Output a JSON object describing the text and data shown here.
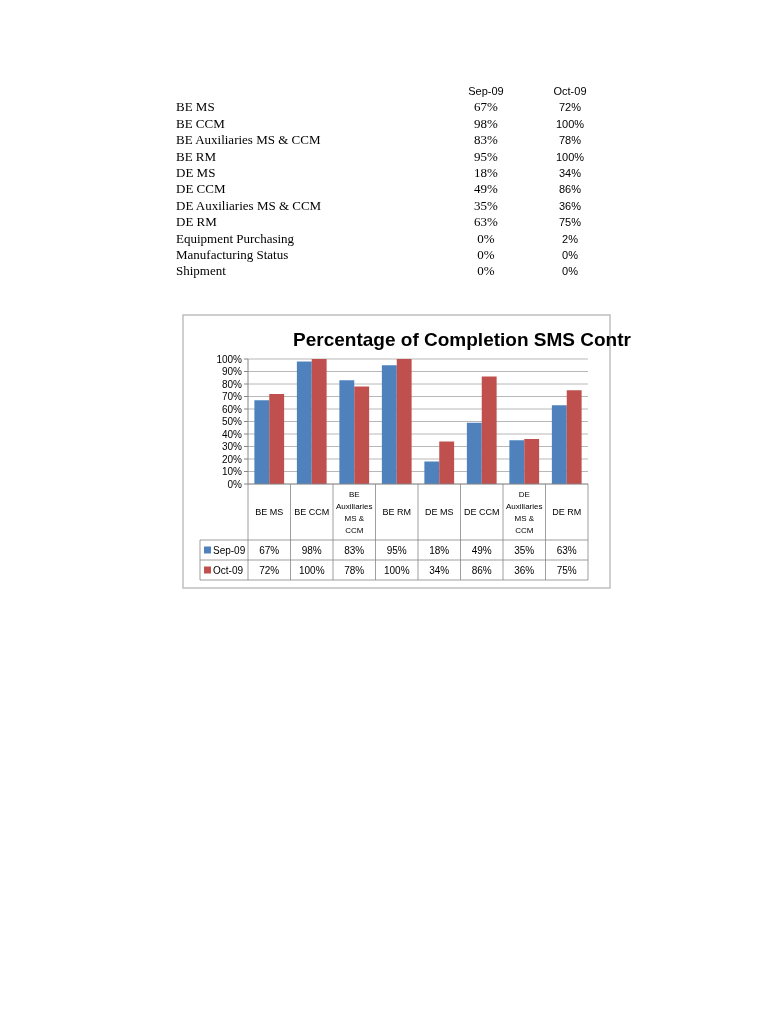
{
  "chart_data": [
    {
      "type": "other",
      "categories": [
        "BE MS",
        "BE CCM",
        "BE Auxiliaries MS & CCM",
        "BE RM",
        "DE MS",
        "DE CCM",
        "DE Auxiliaries MS & CCM",
        "DE RM",
        "Equipment Purchasing",
        "Manufacturing Status",
        "Shipment"
      ],
      "series": [
        {
          "name": "Sep-09",
          "values": [
            67,
            98,
            83,
            95,
            18,
            49,
            35,
            63,
            0,
            0,
            0
          ],
          "value_labels": [
            "67%",
            "98%",
            "83%",
            "95%",
            "18%",
            "49%",
            "35%",
            "63%",
            "0%",
            "0%",
            "0%"
          ]
        },
        {
          "name": "Oct-09",
          "values": [
            72,
            100,
            78,
            100,
            34,
            86,
            36,
            75,
            2,
            0,
            0
          ],
          "value_labels": [
            "72%",
            "100%",
            "78%",
            "100%",
            "34%",
            "86%",
            "36%",
            "75%",
            "2%",
            "0%",
            "0%"
          ]
        }
      ]
    },
    {
      "type": "bar",
      "title": "Percentage of Completion SMS Contr",
      "categories": [
        "BE MS",
        "BE CCM",
        "BE Auxiliaries MS & CCM",
        "BE RM",
        "DE MS",
        "DE CCM",
        "DE Auxiliaries MS & CCM",
        "DE RM"
      ],
      "series": [
        {
          "name": "Sep-09",
          "color": "#4f81bd",
          "values": [
            67,
            98,
            83,
            95,
            18,
            49,
            35,
            63
          ],
          "value_labels": [
            "67%",
            "98%",
            "83%",
            "95%",
            "18%",
            "49%",
            "35%",
            "63%"
          ]
        },
        {
          "name": "Oct-09",
          "color": "#c0504d",
          "values": [
            72,
            100,
            78,
            100,
            34,
            86,
            36,
            75
          ],
          "value_labels": [
            "72%",
            "100%",
            "78%",
            "100%",
            "34%",
            "86%",
            "36%",
            "75%"
          ]
        }
      ],
      "ylim": [
        0,
        100
      ],
      "yticks": [
        {
          "value": 0,
          "label": "0%"
        },
        {
          "value": 10,
          "label": "10%"
        },
        {
          "value": 20,
          "label": "20%"
        },
        {
          "value": 30,
          "label": "30%"
        },
        {
          "value": 40,
          "label": "40%"
        },
        {
          "value": 50,
          "label": "50%"
        },
        {
          "value": 60,
          "label": "60%"
        },
        {
          "value": 70,
          "label": "70%"
        },
        {
          "value": 80,
          "label": "80%"
        },
        {
          "value": 90,
          "label": "90%"
        },
        {
          "value": 100,
          "label": "100%"
        }
      ],
      "grid": "y",
      "legend": "bottom left"
    }
  ]
}
